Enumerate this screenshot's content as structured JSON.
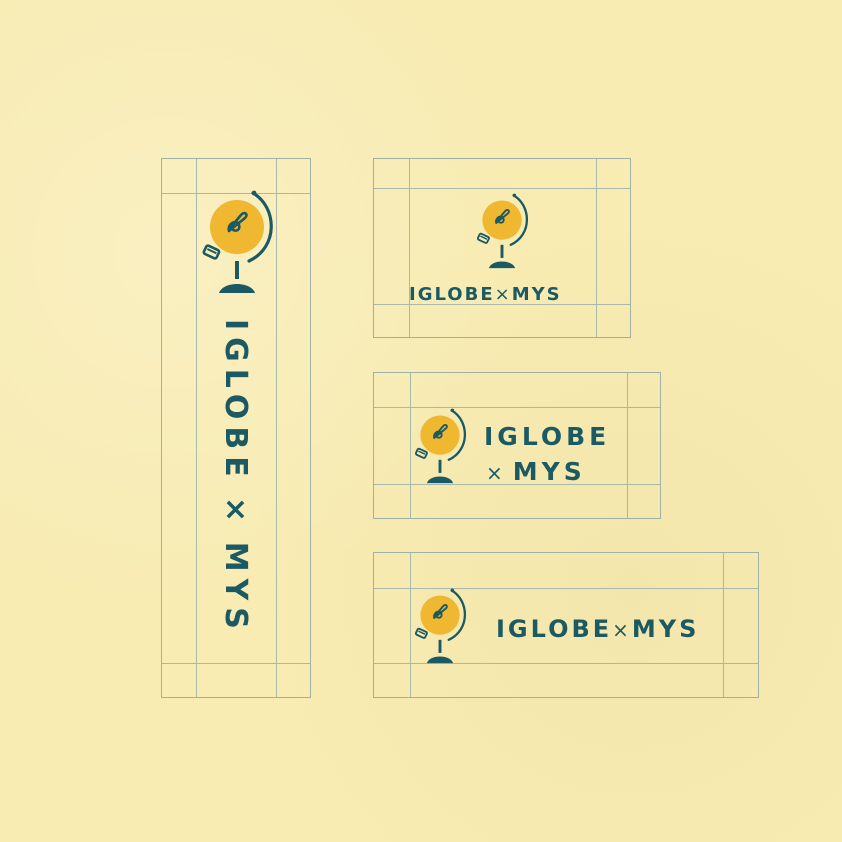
{
  "brand": {
    "word_left": "IGLOBE",
    "separator": "×",
    "word_right": "MYS",
    "colors": {
      "background": "#f8ecb3",
      "text": "#1c5a63",
      "globe_fill": "#f0b731",
      "grid_lines": "#a9b8ab"
    }
  },
  "icon": {
    "name": "globe-lightbulb-icon"
  }
}
